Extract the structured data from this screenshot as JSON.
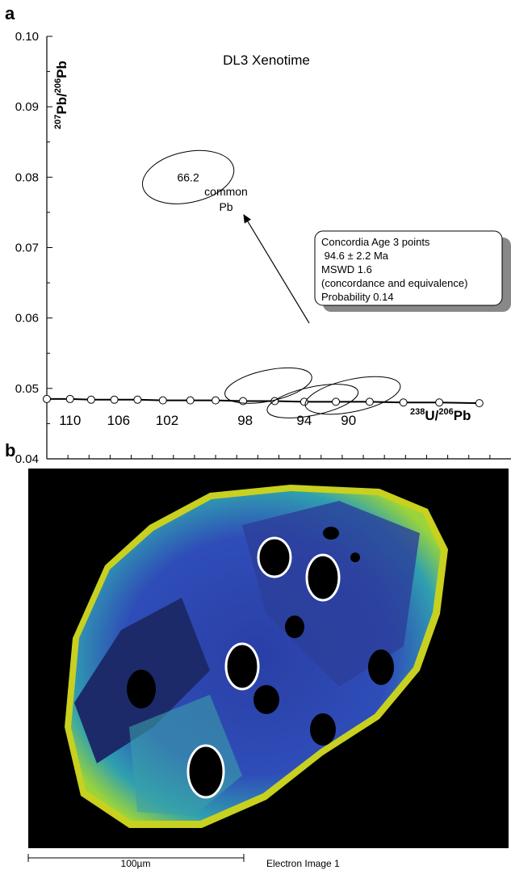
{
  "panel_labels": [
    "a",
    "b"
  ],
  "chart_data": {
    "type": "concordia",
    "title": "DL3 Xenotime",
    "y_label": [
      "207",
      "Pb/",
      "206",
      "Pb"
    ],
    "x_label": [
      "238",
      "U/",
      "206",
      "Pb"
    ],
    "xlim": [
      57,
      79
    ],
    "ylim": [
      0.04,
      0.1
    ],
    "yticks": [
      0.04,
      0.05,
      0.06,
      0.07,
      0.08,
      0.09,
      {
        "value": 0.1,
        "label": "0.10"
      }
    ],
    "yminorticks": [
      0.045,
      0.055,
      0.065,
      0.075,
      0.085,
      0.095
    ],
    "xminorticks": [
      58,
      59,
      60,
      61,
      62,
      63,
      64,
      65,
      66,
      67,
      68,
      69,
      70,
      71,
      72,
      73,
      74,
      75,
      76,
      77,
      78
    ],
    "concordia": {
      "x": [
        57.0,
        58.1,
        59.1,
        60.2,
        61.3,
        62.5,
        63.8,
        65.0,
        66.3,
        67.8,
        69.2,
        70.7,
        72.3,
        73.9,
        75.6,
        77.5
      ],
      "y": [
        0.0485,
        0.0485,
        0.0484,
        0.0484,
        0.0484,
        0.0483,
        0.0483,
        0.0483,
        0.0482,
        0.0482,
        0.0481,
        0.0481,
        0.0481,
        0.048,
        0.048,
        0.0479
      ]
    },
    "age_labels": {
      "values": [
        110,
        106,
        102,
        98,
        94,
        90
      ],
      "x": [
        58.1,
        60.4,
        62.7,
        66.4,
        69.2,
        71.3
      ]
    },
    "ellipses": [
      {
        "x": 63.7,
        "y": 0.08,
        "x_err": 2.2,
        "y_err": 0.0036,
        "label": "66.2"
      },
      {
        "x": 67.5,
        "y": 0.0504,
        "x_err": 2.1,
        "y_err": 0.0022
      },
      {
        "x": 69.6,
        "y": 0.0482,
        "x_err": 2.2,
        "y_err": 0.002
      },
      {
        "x": 71.5,
        "y": 0.049,
        "x_err": 2.3,
        "y_err": 0.0023
      }
    ],
    "arrow_label": [
      "common",
      "Pb"
    ],
    "annotation": [
      "Concordia Age 3 points",
      " 94.6 ± 2.2 Ma",
      "MSWD 1.6",
      "(concordance and equivalence)",
      "Probability 0.14"
    ]
  },
  "image": {
    "scale_label": "100µm",
    "caption": "Electron Image 1"
  }
}
